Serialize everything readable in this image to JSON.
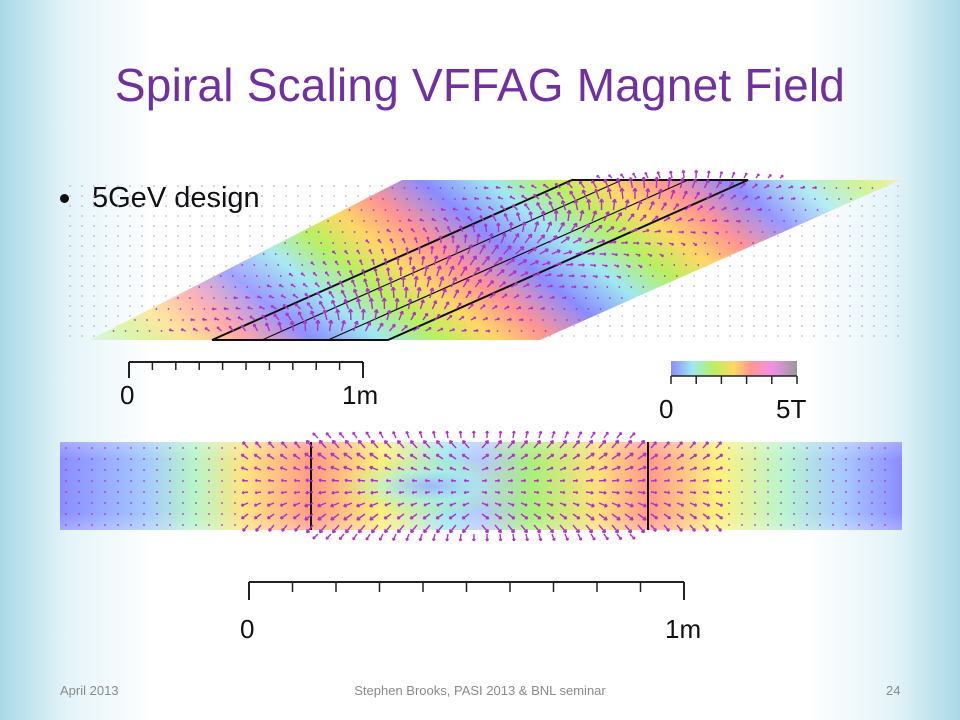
{
  "slide": {
    "title": "Spiral Scaling VFFAG Magnet Field",
    "bullet": "5GeV design"
  },
  "top_scale": {
    "start_label": "0",
    "end_label": "1m"
  },
  "colorbar": {
    "min_label": "0",
    "max_label": "5T"
  },
  "bottom_scale": {
    "start_label": "0",
    "end_label": "1m"
  },
  "footer": {
    "date": "April 2013",
    "center": "Stephen Brooks, PASI 2013 & BNL seminar",
    "page": "24"
  },
  "colors": {
    "title": "#7030a0",
    "arrow": "#b030c8",
    "field_low": "#8a8cff",
    "field_mid": "#b8f060",
    "field_high": "#ff9090"
  }
}
